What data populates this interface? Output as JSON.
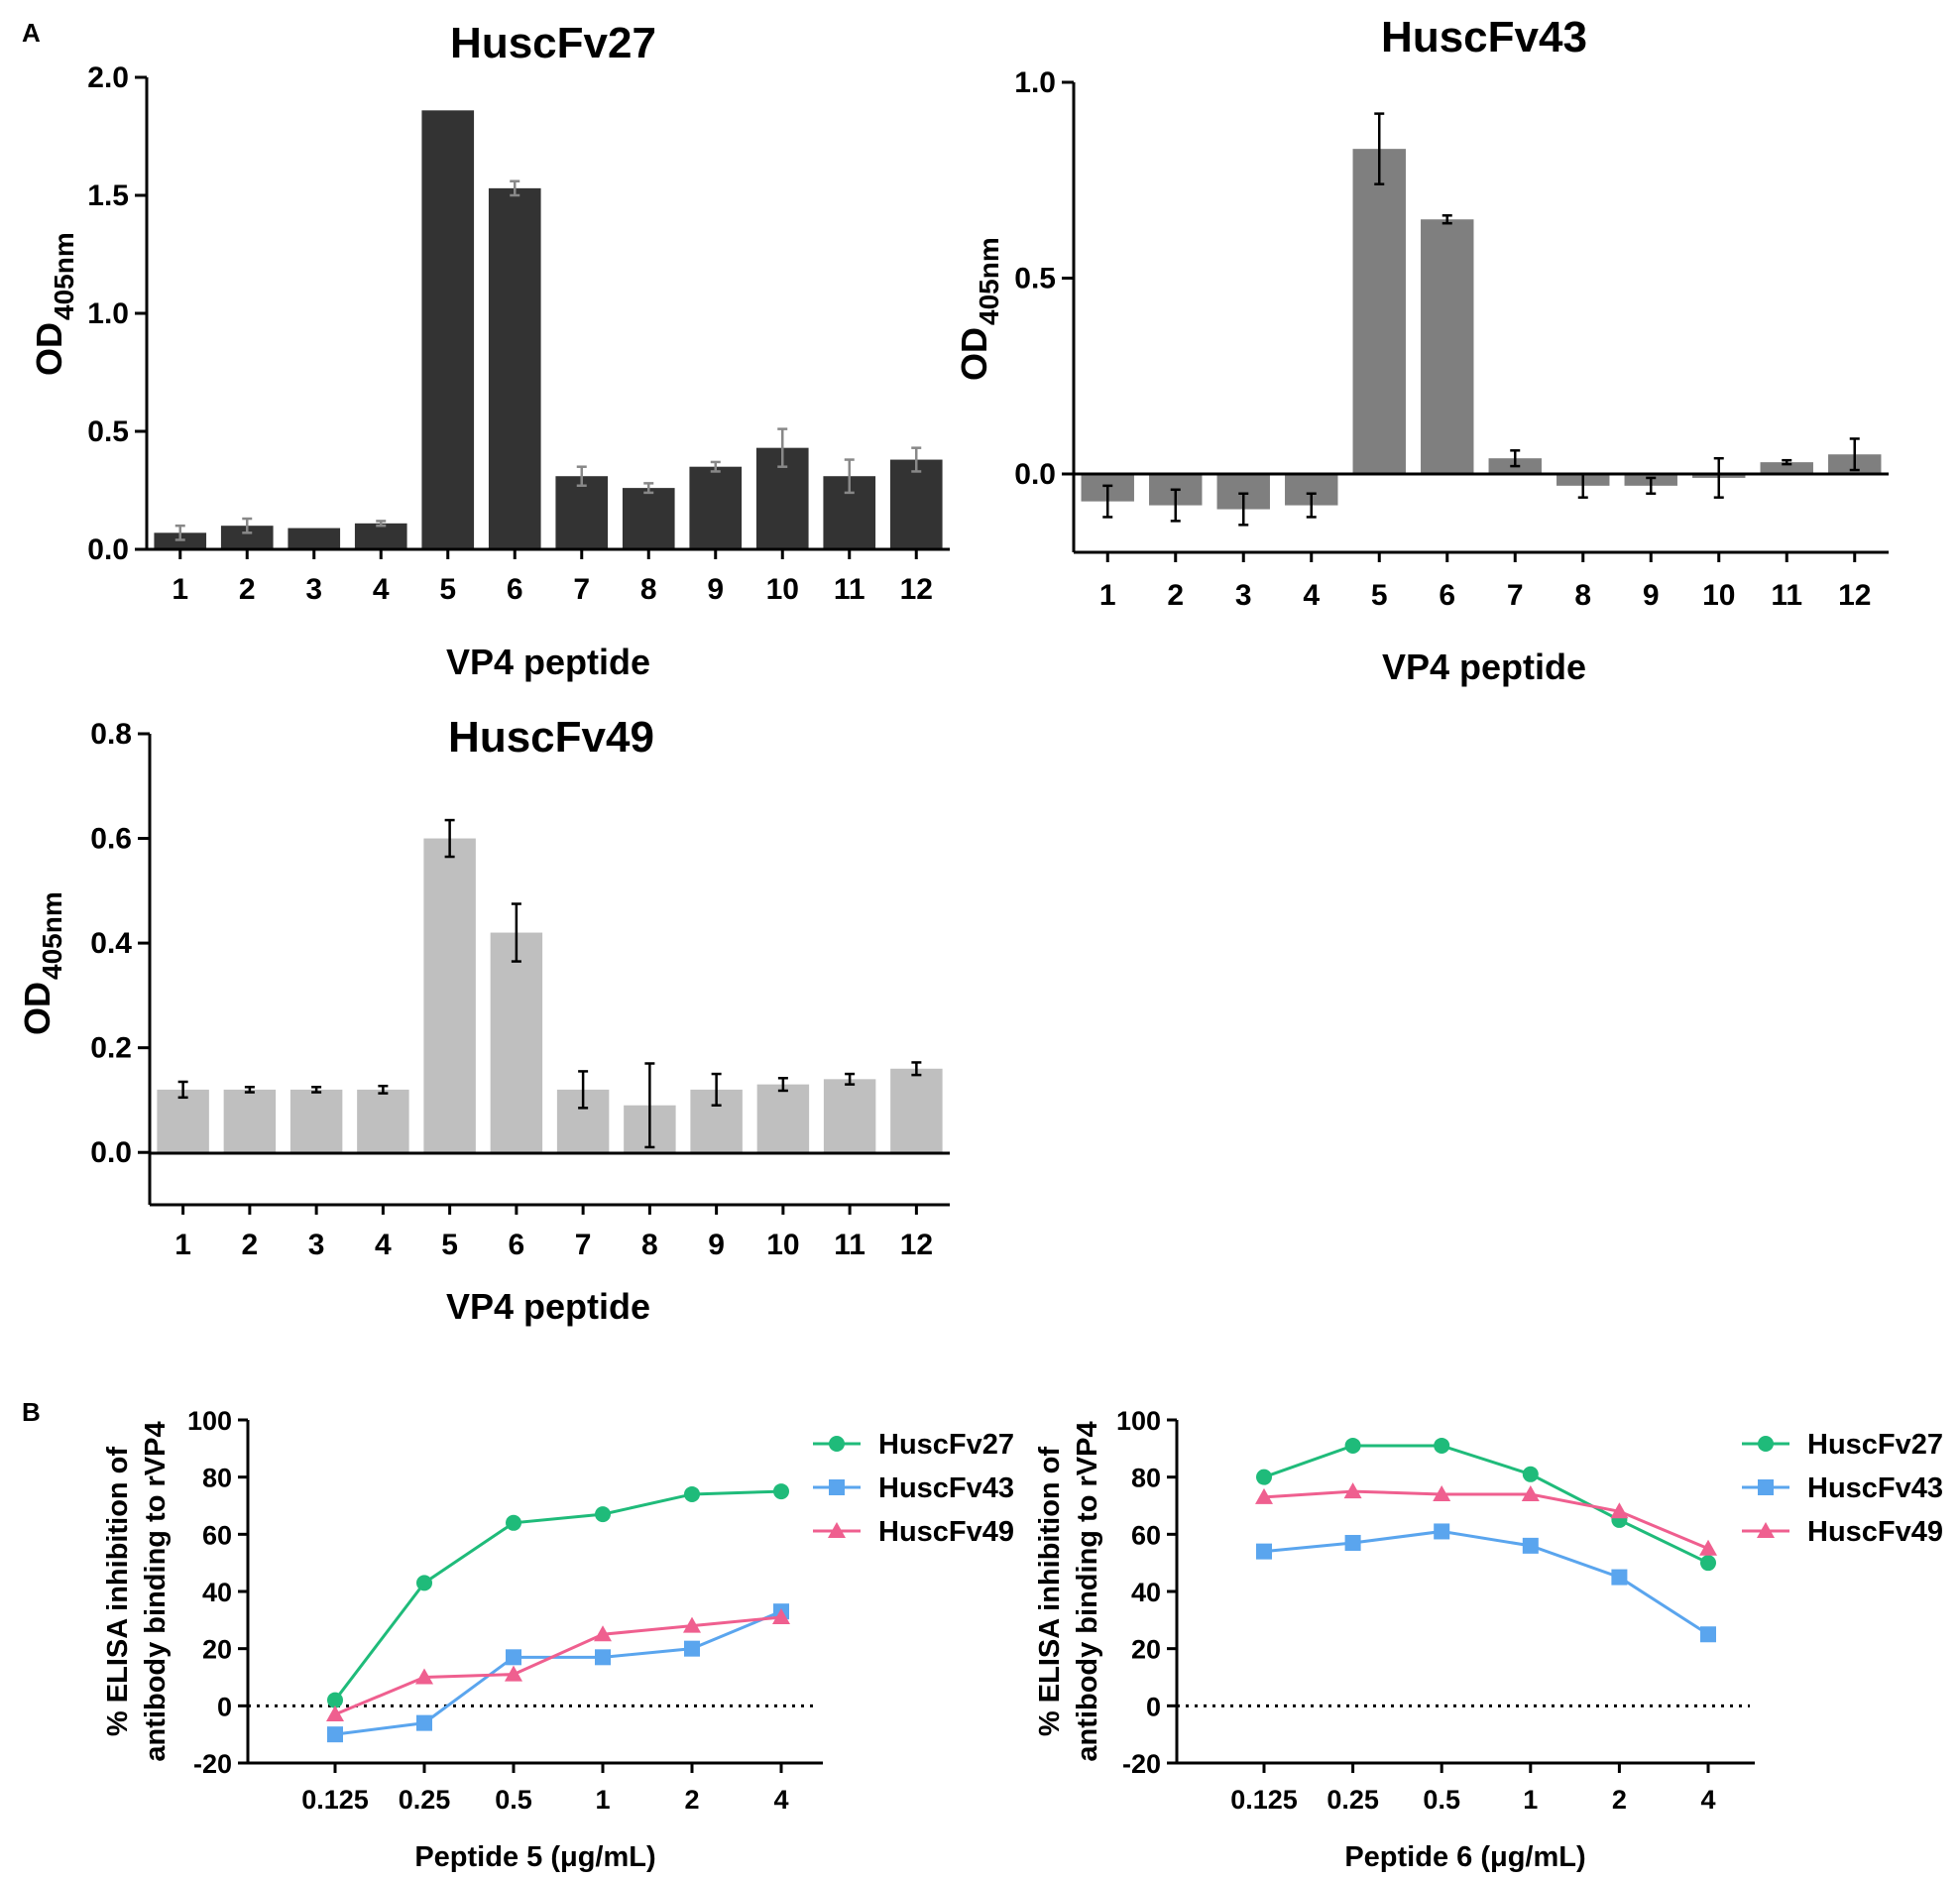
{
  "panels": {
    "a": "A",
    "b": "B"
  },
  "chart_data": [
    {
      "id": "c27",
      "type": "bar",
      "title": "HuscFv27",
      "xlabel": "VP4 peptide",
      "ylabel_main": "OD",
      "ylabel_sub": "405nm",
      "categories": [
        "1",
        "2",
        "3",
        "4",
        "5",
        "6",
        "7",
        "8",
        "9",
        "10",
        "11",
        "12"
      ],
      "values": [
        0.07,
        0.1,
        0.09,
        0.11,
        1.86,
        1.53,
        0.31,
        0.26,
        0.35,
        0.43,
        0.31,
        0.38
      ],
      "errors": [
        0.03,
        0.03,
        0,
        0.01,
        0,
        0.03,
        0.04,
        0.02,
        0.02,
        0.08,
        0.07,
        0.05
      ],
      "yticks": [
        "0.0",
        "0.5",
        "1.0",
        "1.5",
        "2.0"
      ],
      "ylim": [
        0,
        2.0
      ],
      "bar_color": "#333333",
      "error_color": "#888888"
    },
    {
      "id": "c43",
      "type": "bar",
      "title": "HuscFv43",
      "xlabel": "VP4 peptide",
      "ylabel_main": "OD",
      "ylabel_sub": "405nm",
      "categories": [
        "1",
        "2",
        "3",
        "4",
        "5",
        "6",
        "7",
        "8",
        "9",
        "10",
        "11",
        "12"
      ],
      "values": [
        -0.07,
        -0.08,
        -0.09,
        -0.08,
        0.83,
        0.65,
        0.04,
        -0.03,
        -0.03,
        -0.01,
        0.03,
        0.05
      ],
      "errors": [
        0.04,
        0.04,
        0.04,
        0.03,
        0.09,
        0.01,
        0.02,
        0.03,
        0.02,
        0.05,
        0.005,
        0.04
      ],
      "yticks": [
        "0.0",
        "0.5",
        "1.0"
      ],
      "ylim": [
        -0.2,
        1.0
      ],
      "bar_color": "#7f7f7f",
      "error_color": "#000000"
    },
    {
      "id": "c49",
      "type": "bar",
      "title": "HuscFv49",
      "xlabel": "VP4 peptide",
      "ylabel_main": "OD",
      "ylabel_sub": "405nm",
      "categories": [
        "1",
        "2",
        "3",
        "4",
        "5",
        "6",
        "7",
        "8",
        "9",
        "10",
        "11",
        "12"
      ],
      "values": [
        0.12,
        0.12,
        0.12,
        0.12,
        0.6,
        0.42,
        0.12,
        0.09,
        0.12,
        0.13,
        0.14,
        0.16
      ],
      "errors": [
        0.015,
        0.005,
        0.005,
        0.007,
        0.035,
        0.055,
        0.035,
        0.08,
        0.03,
        0.012,
        0.01,
        0.012
      ],
      "yticks": [
        "0.0",
        "0.2",
        "0.4",
        "0.6",
        "0.8"
      ],
      "ylim": [
        -0.1,
        0.8
      ],
      "bar_color": "#bfbfbf",
      "error_color": "#000000"
    },
    {
      "id": "p5",
      "type": "line",
      "xlabel": "Peptide 5 (μg/mL)",
      "ylabel_line1": "% ELISA inhibition of",
      "ylabel_line2": "antibody binding to rVP4",
      "x": [
        "0.125",
        "0.25",
        "0.5",
        "1",
        "2",
        "4"
      ],
      "yticks": [
        "-20",
        "0",
        "20",
        "40",
        "60",
        "80",
        "100"
      ],
      "ylim": [
        -20,
        100
      ],
      "series": [
        {
          "name": "HuscFv27",
          "color": "#1fbb7a",
          "marker": "circle",
          "values": [
            2,
            43,
            64,
            67,
            74,
            75
          ]
        },
        {
          "name": "HuscFv43",
          "color": "#5aa5ee",
          "marker": "square",
          "values": [
            -10,
            -6,
            17,
            17,
            20,
            33
          ]
        },
        {
          "name": "HuscFv49",
          "color": "#ef5f8f",
          "marker": "triangle",
          "values": [
            -3,
            10,
            11,
            25,
            28,
            31
          ]
        }
      ]
    },
    {
      "id": "p6",
      "type": "line",
      "xlabel": "Peptide 6 (μg/mL)",
      "ylabel_line1": "% ELISA inhibition of",
      "ylabel_line2": "antibody binding to rVP4",
      "x": [
        "0.125",
        "0.25",
        "0.5",
        "1",
        "2",
        "4"
      ],
      "yticks": [
        "-20",
        "0",
        "20",
        "40",
        "60",
        "80",
        "100"
      ],
      "ylim": [
        -20,
        100
      ],
      "series": [
        {
          "name": "HuscFv27",
          "color": "#1fbb7a",
          "marker": "circle",
          "values": [
            80,
            91,
            91,
            81,
            65,
            50
          ]
        },
        {
          "name": "HuscFv43",
          "color": "#5aa5ee",
          "marker": "square",
          "values": [
            54,
            57,
            61,
            56,
            45,
            25
          ]
        },
        {
          "name": "HuscFv49",
          "color": "#ef5f8f",
          "marker": "triangle",
          "values": [
            73,
            75,
            74,
            74,
            68,
            55
          ]
        }
      ]
    }
  ]
}
